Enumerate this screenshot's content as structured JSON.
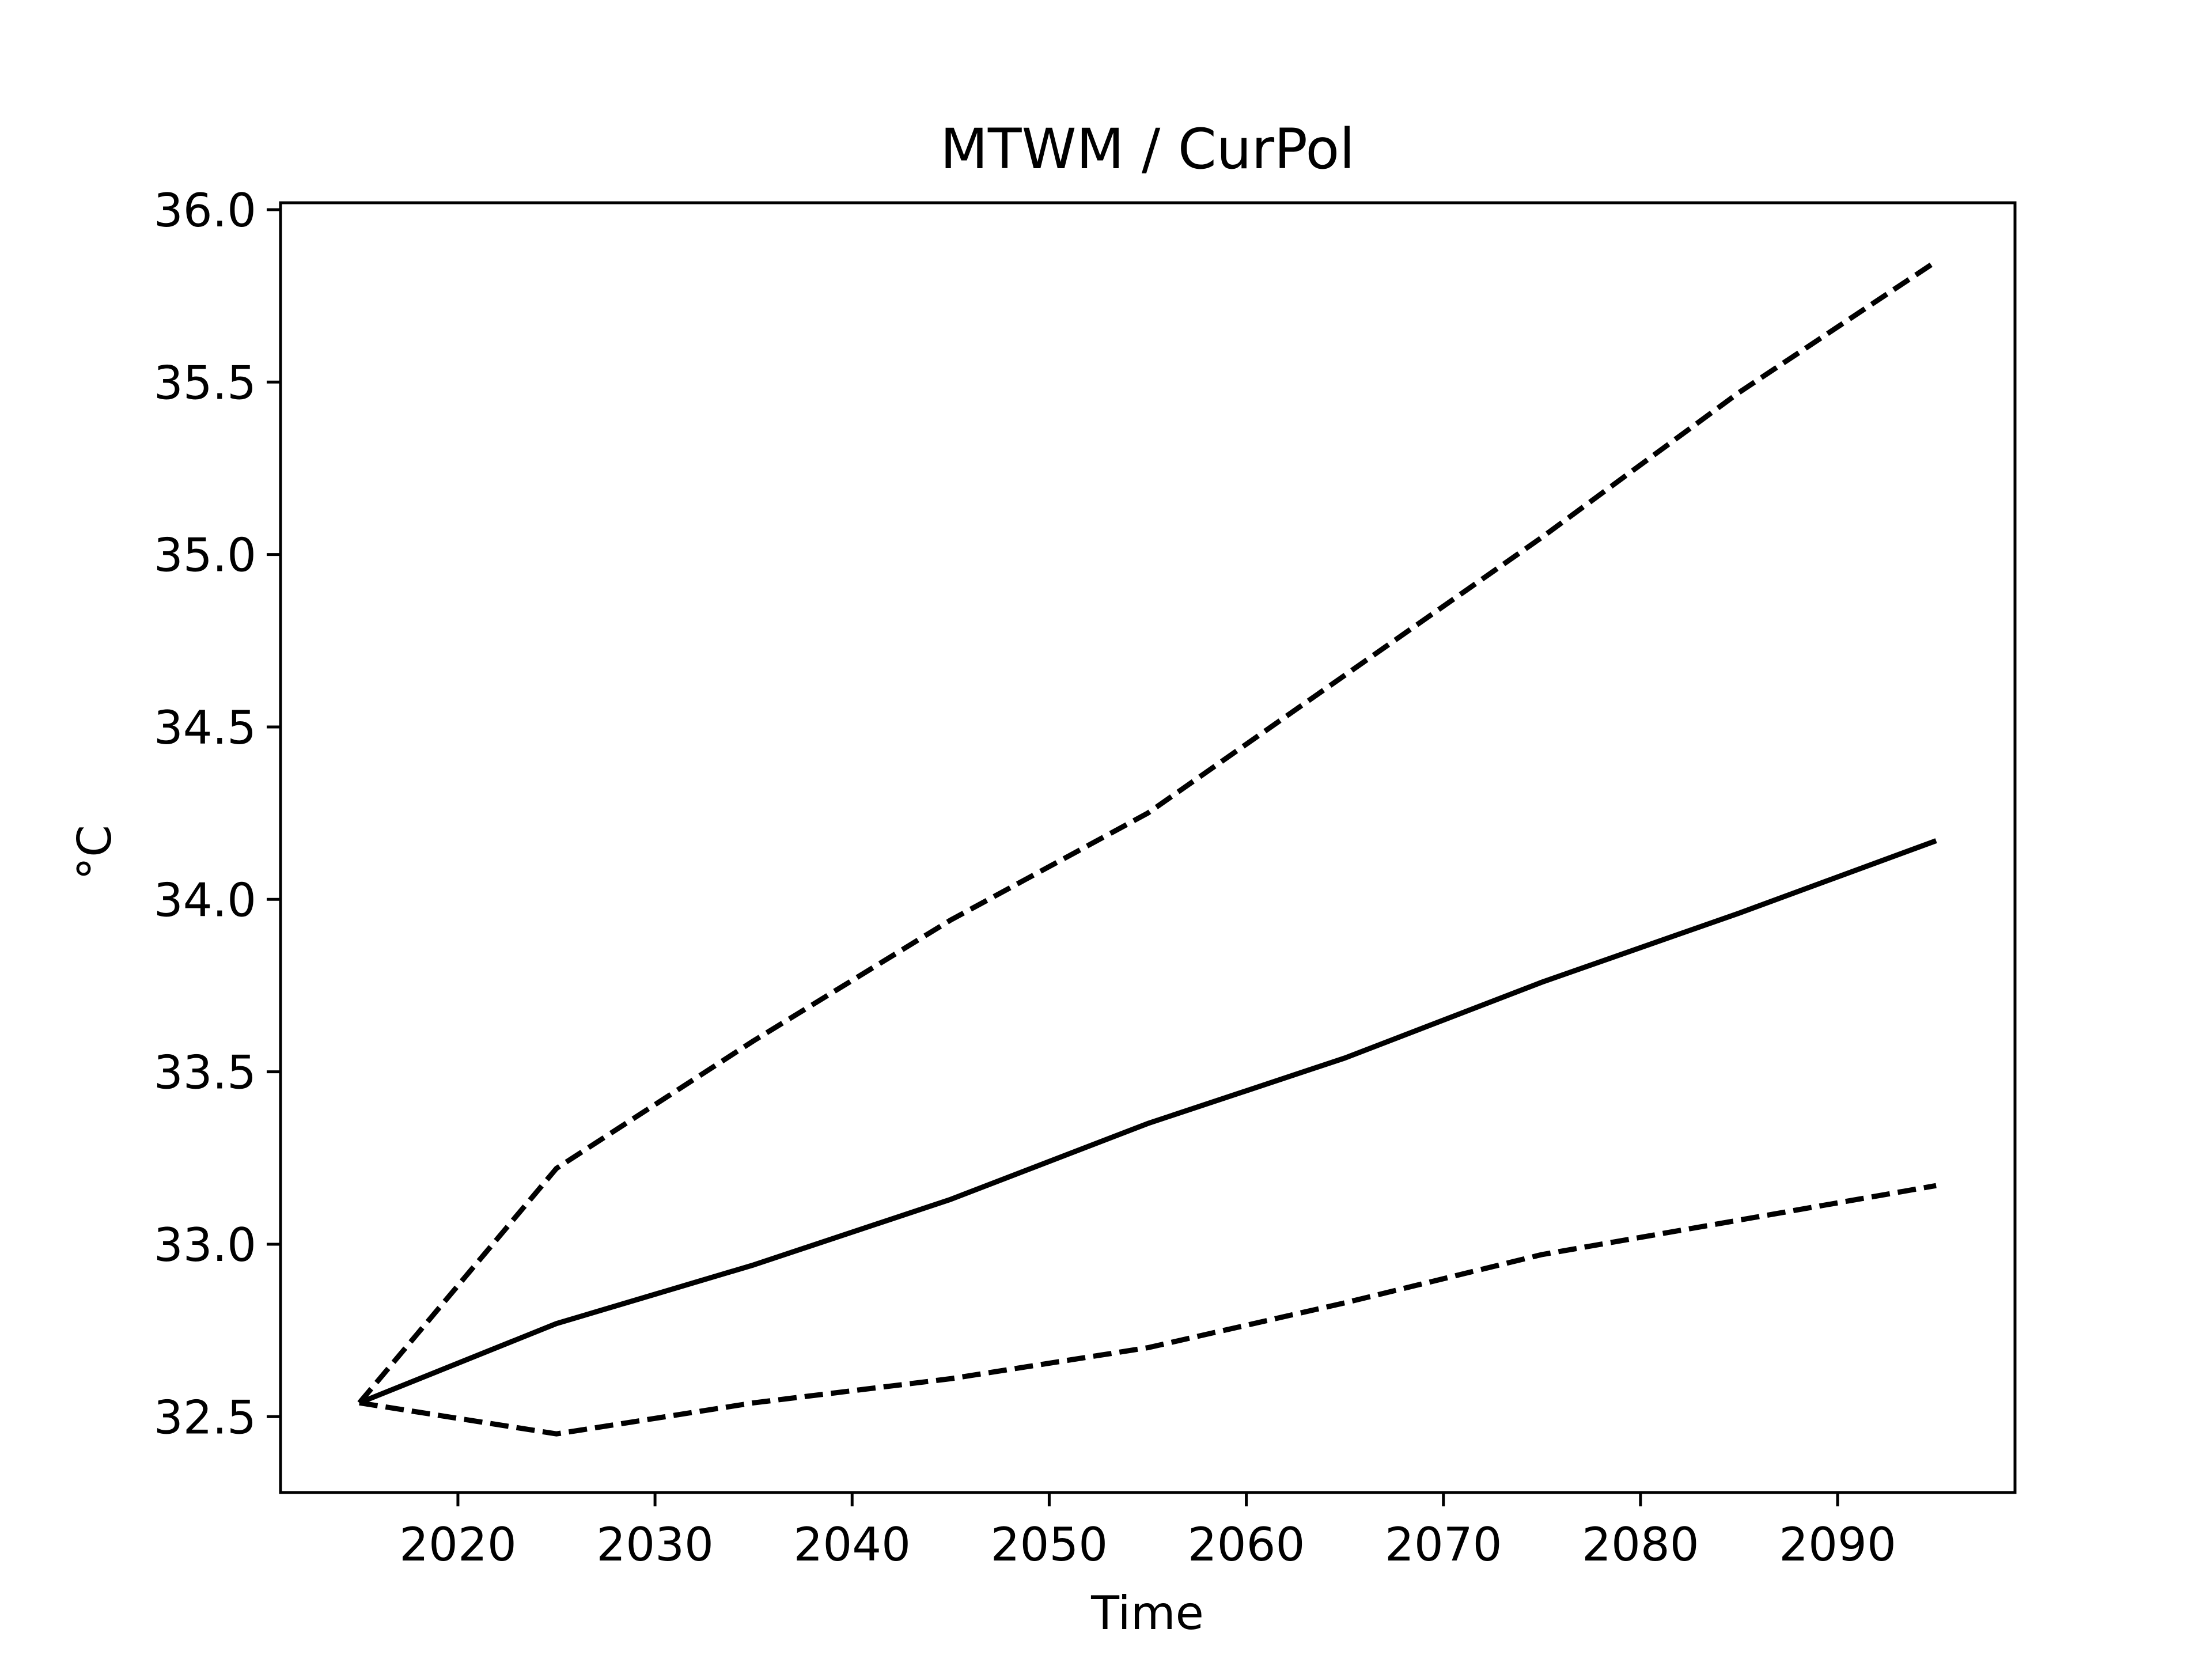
{
  "chart_data": {
    "type": "line",
    "title": "MTWM / CurPol",
    "xlabel": "Time",
    "ylabel": "°C",
    "xlim": [
      2011,
      2099
    ],
    "ylim": [
      32.28,
      36.02
    ],
    "xticks": [
      2020,
      2030,
      2040,
      2050,
      2060,
      2070,
      2080,
      2090
    ],
    "yticks": [
      32.5,
      33.0,
      33.5,
      34.0,
      34.5,
      35.0,
      35.5,
      36.0
    ],
    "ytick_labels": [
      "32.5",
      "33.0",
      "33.5",
      "34.0",
      "34.5",
      "35.0",
      "35.5",
      "36.0"
    ],
    "grid": false,
    "legend": "none",
    "line_color": "#000000",
    "x": [
      2015,
      2025,
      2035,
      2045,
      2055,
      2065,
      2075,
      2085,
      2095
    ],
    "series": [
      {
        "style": "dashed",
        "values": [
          32.54,
          33.22,
          33.59,
          33.94,
          34.25,
          34.65,
          35.05,
          35.47,
          35.85
        ]
      },
      {
        "style": "solid",
        "values": [
          32.54,
          32.77,
          32.94,
          33.13,
          33.35,
          33.54,
          33.76,
          33.96,
          34.17
        ]
      },
      {
        "style": "dashed",
        "values": [
          32.54,
          32.45,
          32.54,
          32.61,
          32.7,
          32.83,
          32.97,
          33.07,
          33.17
        ]
      }
    ]
  }
}
